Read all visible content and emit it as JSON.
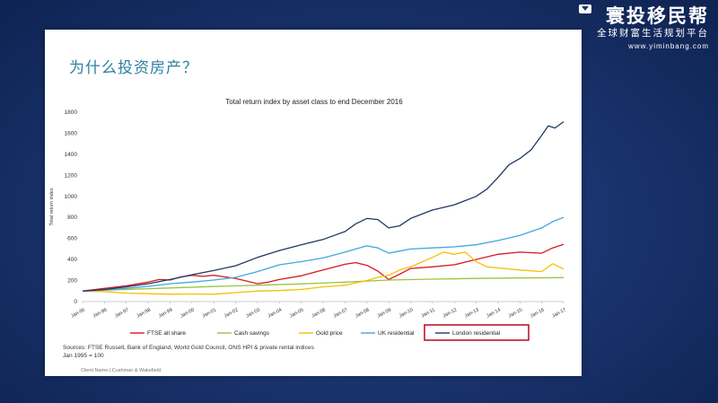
{
  "slide": {
    "title": "为什么投资房产？",
    "sources_line1": "Sources: FTSE Russell, Bank of England, World Gold Council, ONS HPI & private rental indices",
    "sources_line2": "Jan 1995 = 100",
    "footer": "Client Name  |  Cushman & Wakefield"
  },
  "logo": {
    "main": "寰投移民帮",
    "sub": "全球财富生活规划平台",
    "url": "www.yiminbang.com"
  },
  "highlight_color": "#c0142f",
  "chart_data": {
    "type": "line",
    "title": "Total return index by asset class to end December 2016",
    "ylabel": "Total return index",
    "xlabel": "",
    "ylim": [
      0,
      1800
    ],
    "yticks": [
      0,
      200,
      400,
      600,
      800,
      1000,
      1200,
      1400,
      1600,
      1800
    ],
    "xlim": [
      1995,
      2017
    ],
    "xticks": [
      {
        "v": 1995,
        "label": "Jan-95"
      },
      {
        "v": 1996,
        "label": "Jan-96"
      },
      {
        "v": 1997,
        "label": "Jan-97"
      },
      {
        "v": 1998,
        "label": "Jan-98"
      },
      {
        "v": 1999,
        "label": "Jan-99"
      },
      {
        "v": 2000,
        "label": "Jan-00"
      },
      {
        "v": 2001,
        "label": "Jan-01"
      },
      {
        "v": 2002,
        "label": "Jan-02"
      },
      {
        "v": 2003,
        "label": "Jan-03"
      },
      {
        "v": 2004,
        "label": "Jan-04"
      },
      {
        "v": 2005,
        "label": "Jan-05"
      },
      {
        "v": 2006,
        "label": "Jan-06"
      },
      {
        "v": 2007,
        "label": "Jan-07"
      },
      {
        "v": 2008,
        "label": "Jan-08"
      },
      {
        "v": 2009,
        "label": "Jan-09"
      },
      {
        "v": 2010,
        "label": "Jan-10"
      },
      {
        "v": 2011,
        "label": "Jan-11"
      },
      {
        "v": 2012,
        "label": "Jan-12"
      },
      {
        "v": 2013,
        "label": "Jan-13"
      },
      {
        "v": 2014,
        "label": "Jan-14"
      },
      {
        "v": 2015,
        "label": "Jan-15"
      },
      {
        "v": 2016,
        "label": "Jan-16"
      },
      {
        "v": 2017,
        "label": "Jan-17"
      }
    ],
    "grid": false,
    "legend_position": "bottom",
    "series": [
      {
        "name": "FTSE all share",
        "color": "#d7191c",
        "x": [
          1995,
          1996,
          1997,
          1998,
          1998.5,
          1999,
          1999.5,
          2000,
          2000.5,
          2001,
          2001.5,
          2002,
          2002.5,
          2003,
          2003.5,
          2004,
          2005,
          2006,
          2007,
          2007.5,
          2008,
          2008.5,
          2009,
          2009.5,
          2010,
          2011,
          2012,
          2013,
          2014,
          2015,
          2016,
          2016.5,
          2016.8,
          2017
        ],
        "y": [
          100,
          125,
          150,
          185,
          210,
          205,
          235,
          250,
          240,
          250,
          235,
          220,
          195,
          170,
          185,
          210,
          245,
          300,
          355,
          370,
          345,
          290,
          210,
          260,
          315,
          330,
          350,
          400,
          450,
          470,
          460,
          510,
          530,
          545
        ]
      },
      {
        "name": "Cash savings",
        "color": "#9ac540",
        "x": [
          1995,
          1997,
          1999,
          2001,
          2003,
          2005,
          2007,
          2009,
          2011,
          2013,
          2015,
          2017
        ],
        "y": [
          100,
          115,
          130,
          143,
          155,
          168,
          185,
          205,
          213,
          220,
          224,
          228
        ]
      },
      {
        "name": "Gold price",
        "color": "#f5c000",
        "x": [
          1995,
          1996,
          1997,
          1998,
          1999,
          2000,
          2001,
          2002,
          2003,
          2004,
          2005,
          2006,
          2007,
          2008,
          2008.5,
          2009,
          2009.5,
          2010,
          2011,
          2011.5,
          2012,
          2012.5,
          2013,
          2013.5,
          2014,
          2015,
          2016,
          2016.5,
          2017
        ],
        "y": [
          100,
          95,
          80,
          75,
          70,
          72,
          70,
          85,
          100,
          105,
          115,
          140,
          155,
          200,
          230,
          250,
          300,
          330,
          420,
          470,
          450,
          470,
          380,
          330,
          320,
          300,
          285,
          360,
          310
        ]
      },
      {
        "name": "UK residential",
        "color": "#3fa9dc",
        "x": [
          1995,
          1996,
          1997,
          1998,
          1999,
          2000,
          2001,
          2002,
          2003,
          2004,
          2005,
          2006,
          2007,
          2008,
          2008.5,
          2009,
          2009.5,
          2010,
          2011,
          2012,
          2013,
          2014,
          2015,
          2016,
          2016.5,
          2017
        ],
        "y": [
          100,
          110,
          125,
          145,
          170,
          185,
          205,
          230,
          285,
          350,
          380,
          415,
          470,
          530,
          510,
          460,
          480,
          500,
          510,
          520,
          540,
          580,
          630,
          700,
          760,
          800
        ]
      },
      {
        "name": "London residential",
        "color": "#1f3864",
        "x": [
          1995,
          1996,
          1997,
          1998,
          1999,
          2000,
          2001,
          2002,
          2003,
          2004,
          2005,
          2006,
          2007,
          2007.5,
          2008,
          2008.5,
          2009,
          2009.5,
          2010,
          2011,
          2012,
          2013,
          2013.5,
          2014,
          2014.5,
          2015,
          2015.5,
          2016,
          2016.3,
          2016.6,
          2017
        ],
        "y": [
          100,
          115,
          140,
          170,
          210,
          255,
          295,
          340,
          420,
          485,
          540,
          590,
          665,
          740,
          790,
          780,
          700,
          720,
          790,
          870,
          920,
          1000,
          1070,
          1180,
          1300,
          1360,
          1440,
          1580,
          1670,
          1650,
          1710
        ]
      }
    ],
    "highlight_legend": "London residential"
  }
}
